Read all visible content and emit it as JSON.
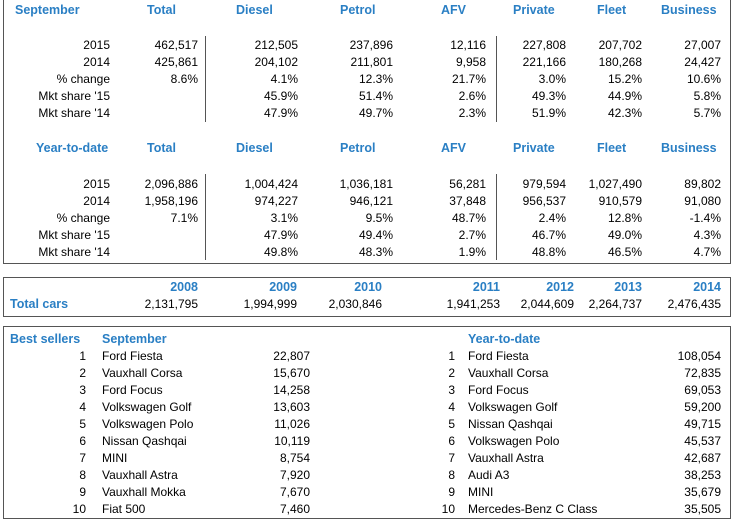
{
  "september": {
    "title": "September",
    "columns": [
      "Total",
      "Diesel",
      "Petrol",
      "AFV",
      "Private",
      "Fleet",
      "Business"
    ],
    "rows": [
      {
        "label": "2015",
        "values": [
          "462,517",
          "212,505",
          "237,896",
          "12,116",
          "227,808",
          "207,702",
          "27,007"
        ]
      },
      {
        "label": "2014",
        "values": [
          "425,861",
          "204,102",
          "211,801",
          "9,958",
          "221,166",
          "180,268",
          "24,427"
        ]
      },
      {
        "label": "% change",
        "values": [
          "8.6%",
          "4.1%",
          "12.3%",
          "21.7%",
          "3.0%",
          "15.2%",
          "10.6%"
        ]
      },
      {
        "label": "Mkt share '15",
        "values": [
          null,
          "45.9%",
          "51.4%",
          "2.6%",
          "49.3%",
          "44.9%",
          "5.8%"
        ]
      },
      {
        "label": "Mkt share '14",
        "values": [
          null,
          "47.9%",
          "49.7%",
          "2.3%",
          "51.9%",
          "42.3%",
          "5.7%"
        ]
      }
    ]
  },
  "year_to_date": {
    "title": "Year-to-date",
    "columns": [
      "Total",
      "Diesel",
      "Petrol",
      "AFV",
      "Private",
      "Fleet",
      "Business"
    ],
    "rows": [
      {
        "label": "2015",
        "values": [
          "2,096,886",
          "1,004,424",
          "1,036,181",
          "56,281",
          "979,594",
          "1,027,490",
          "89,802"
        ]
      },
      {
        "label": "2014",
        "values": [
          "1,958,196",
          "974,227",
          "946,121",
          "37,848",
          "956,537",
          "910,579",
          "91,080"
        ]
      },
      {
        "label": "% change",
        "values": [
          "7.1%",
          "3.1%",
          "9.5%",
          "48.7%",
          "2.4%",
          "12.8%",
          "-1.4%"
        ]
      },
      {
        "label": "Mkt share '15",
        "values": [
          null,
          "47.9%",
          "49.4%",
          "2.7%",
          "46.7%",
          "49.0%",
          "4.3%"
        ]
      },
      {
        "label": "Mkt share '14",
        "values": [
          null,
          "49.8%",
          "48.3%",
          "1.9%",
          "48.8%",
          "46.5%",
          "4.7%"
        ]
      }
    ]
  },
  "totals": {
    "label": "Total cars",
    "years": [
      "2008",
      "2009",
      "2010",
      "2011",
      "2012",
      "2013",
      "2014"
    ],
    "values": [
      "2,131,795",
      "1,994,999",
      "2,030,846",
      "1,941,253",
      "2,044,609",
      "2,264,737",
      "2,476,435"
    ]
  },
  "best_sellers": {
    "title": "Best sellers",
    "september": {
      "title": "September",
      "items": [
        {
          "rank": 1,
          "name": "Ford Fiesta",
          "value": "22,807"
        },
        {
          "rank": 2,
          "name": "Vauxhall Corsa",
          "value": "15,670"
        },
        {
          "rank": 3,
          "name": "Ford Focus",
          "value": "14,258"
        },
        {
          "rank": 4,
          "name": "Volkswagen Golf",
          "value": "13,603"
        },
        {
          "rank": 5,
          "name": "Volkswagen Polo",
          "value": "11,026"
        },
        {
          "rank": 6,
          "name": "Nissan Qashqai",
          "value": "10,119"
        },
        {
          "rank": 7,
          "name": "MINI",
          "value": "8,754"
        },
        {
          "rank": 8,
          "name": "Vauxhall Astra",
          "value": "7,920"
        },
        {
          "rank": 9,
          "name": "Vauxhall Mokka",
          "value": "7,670"
        },
        {
          "rank": 10,
          "name": "Fiat 500",
          "value": "7,460"
        }
      ]
    },
    "year_to_date": {
      "title": "Year-to-date",
      "items": [
        {
          "rank": 1,
          "name": "Ford Fiesta",
          "value": "108,054"
        },
        {
          "rank": 2,
          "name": "Vauxhall Corsa",
          "value": "72,835"
        },
        {
          "rank": 3,
          "name": "Ford Focus",
          "value": "69,053"
        },
        {
          "rank": 4,
          "name": "Volkswagen Golf",
          "value": "59,200"
        },
        {
          "rank": 5,
          "name": "Nissan Qashqai",
          "value": "49,715"
        },
        {
          "rank": 6,
          "name": "Volkswagen Polo",
          "value": "45,537"
        },
        {
          "rank": 7,
          "name": "Vauxhall Astra",
          "value": "42,687"
        },
        {
          "rank": 8,
          "name": "Audi A3",
          "value": "38,253"
        },
        {
          "rank": 9,
          "name": "MINI",
          "value": "35,679"
        },
        {
          "rank": 10,
          "name": "Mercedes-Benz C Class",
          "value": "35,505"
        }
      ]
    }
  }
}
